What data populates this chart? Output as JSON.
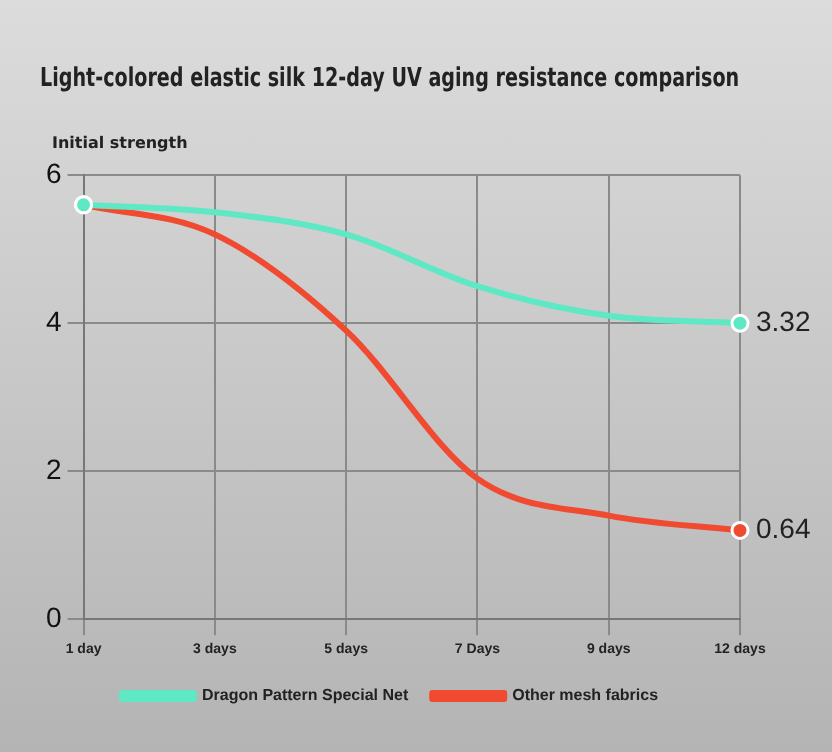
{
  "chart_data": {
    "type": "line",
    "title": "Light-colored elastic silk 12-day UV aging resistance comparison",
    "ylabel": "Initial strength",
    "categories": [
      "1 day",
      "3 days",
      "5 days",
      "7 Days",
      "9 days",
      "12 days"
    ],
    "series": [
      {
        "name": "Dragon Pattern Special Net",
        "color": "#5ee8c4",
        "values": [
          5.6,
          5.5,
          5.2,
          4.5,
          4.1,
          4.0
        ]
      },
      {
        "name": "Other mesh fabrics",
        "color": "#f04a30",
        "values": [
          5.6,
          5.2,
          3.9,
          1.9,
          1.4,
          1.2
        ]
      }
    ],
    "annotations": [
      "3.32",
      "0.64"
    ],
    "ylim": [
      0,
      6
    ],
    "yticks": [
      0,
      2,
      4,
      6
    ],
    "grid": true,
    "legend": "bottom",
    "line_style": "solid"
  }
}
